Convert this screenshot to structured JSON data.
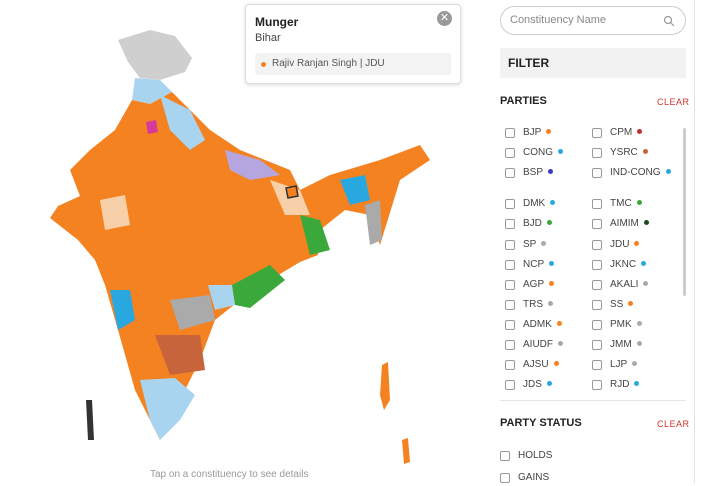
{
  "tooltip": {
    "title": "Munger",
    "subtitle": "Bihar",
    "winner": {
      "label": "Rajiv Ranjan Singh | JDU",
      "color": "#f58220"
    }
  },
  "search": {
    "placeholder": "Constituency Name"
  },
  "filter": {
    "label": "FILTER"
  },
  "parties": {
    "title": "PARTIES",
    "clear": "CLEAR",
    "items": [
      {
        "name": "BJP",
        "color": "#f58220"
      },
      {
        "name": "CPM",
        "color": "#c0302a"
      },
      {
        "name": "CONG",
        "color": "#29a8e0"
      },
      {
        "name": "YSRC",
        "color": "#c8643c"
      },
      {
        "name": "BSP",
        "color": "#3a3ab8"
      },
      {
        "name": "IND-CONG",
        "color": "#29a8e0"
      },
      {
        "name": "DMK",
        "color": "#29a8e0"
      },
      {
        "name": "TMC",
        "color": "#3aa83a"
      },
      {
        "name": "BJD",
        "color": "#3aa83a"
      },
      {
        "name": "AIMIM",
        "color": "#1e4a1e"
      },
      {
        "name": "SP",
        "color": "#aaaaaa"
      },
      {
        "name": "JDU",
        "color": "#f58220"
      },
      {
        "name": "NCP",
        "color": "#29a8e0"
      },
      {
        "name": "JKNC",
        "color": "#29a8e0"
      },
      {
        "name": "AGP",
        "color": "#f58220"
      },
      {
        "name": "AKALI",
        "color": "#aaaaaa"
      },
      {
        "name": "TRS",
        "color": "#aaaaaa"
      },
      {
        "name": "SS",
        "color": "#f58220"
      },
      {
        "name": "ADMK",
        "color": "#f58220"
      },
      {
        "name": "PMK",
        "color": "#aaaaaa"
      },
      {
        "name": "AIUDF",
        "color": "#aaaaaa"
      },
      {
        "name": "JMM",
        "color": "#aaaaaa"
      },
      {
        "name": "AJSU",
        "color": "#f58220"
      },
      {
        "name": "LJP",
        "color": "#aaaaaa"
      },
      {
        "name": "JDS",
        "color": "#29a8e0"
      },
      {
        "name": "RJD",
        "color": "#29a8e0"
      }
    ]
  },
  "party_status": {
    "title": "PARTY STATUS",
    "clear": "CLEAR",
    "items": [
      "HOLDS",
      "GAINS"
    ]
  },
  "footer": "Tap on a constituency to see details"
}
